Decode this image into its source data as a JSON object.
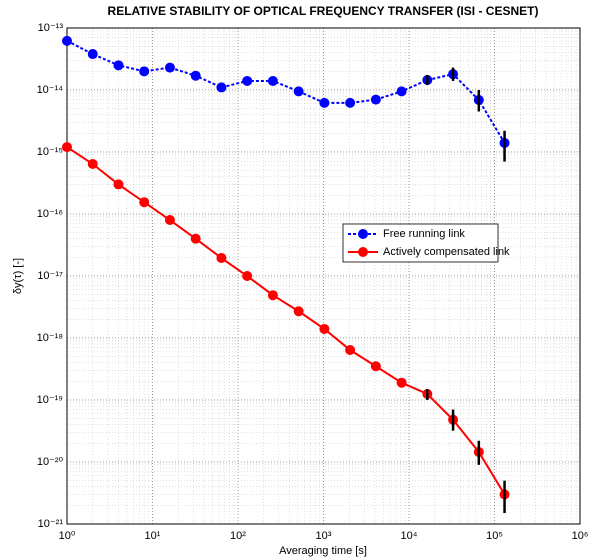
{
  "chart_data": {
    "type": "line",
    "title": "RELATIVE STABILITY OF OPTICAL FREQUENCY TRANSFER (ISI - CESNET)",
    "x_label": "Averaging time [s]",
    "y_label": "δy(τ) [-]",
    "log_x": true,
    "log_y": true,
    "grid": true,
    "minor_grid": true,
    "legend": "right",
    "x": [
      1,
      2,
      4,
      8,
      16,
      32,
      64,
      128,
      256,
      512,
      1024,
      2048,
      4096,
      8192,
      16384,
      32768,
      65536,
      131072
    ],
    "series": [
      {
        "name": "Free running link",
        "color": "#0000ff",
        "line_style": "dotted",
        "values": [
          6.2e-14,
          3.8e-14,
          2.5e-14,
          2e-14,
          2.3e-14,
          1.7e-14,
          1.1e-14,
          1.4e-14,
          1.4e-14,
          9.5e-15,
          6.2e-15,
          6.2e-15,
          7e-15,
          9.5e-15,
          1.45e-14,
          1.8e-14,
          6.9e-15,
          1.4e-15
        ],
        "err_low": [
          null,
          null,
          null,
          null,
          null,
          null,
          null,
          null,
          null,
          null,
          null,
          null,
          null,
          null,
          1.2e-14,
          1.4e-14,
          4.5e-15,
          7e-16
        ],
        "err_high": [
          null,
          null,
          null,
          null,
          null,
          null,
          null,
          null,
          null,
          null,
          null,
          null,
          null,
          null,
          1.75e-14,
          2.3e-14,
          1e-14,
          2.2e-15
        ]
      },
      {
        "name": "Actively compensated link",
        "color": "#ff0000",
        "line_style": "solid",
        "values": [
          1.2e-15,
          6.4e-16,
          3e-16,
          1.55e-16,
          8e-17,
          4e-17,
          1.95e-17,
          1e-17,
          4.9e-18,
          2.7e-18,
          1.4e-18,
          6.4e-19,
          3.5e-19,
          1.9e-19,
          1.25e-19,
          4.8e-20,
          1.45e-20,
          3e-21
        ],
        "err_low": [
          null,
          null,
          null,
          null,
          null,
          null,
          null,
          null,
          null,
          null,
          null,
          null,
          null,
          null,
          1e-19,
          3.2e-20,
          9e-21,
          1.5e-21
        ],
        "err_high": [
          null,
          null,
          null,
          null,
          null,
          null,
          null,
          null,
          null,
          null,
          null,
          null,
          null,
          null,
          1.5e-19,
          7e-20,
          2.2e-20,
          5e-21
        ]
      }
    ],
    "xlim": [
      1,
      1000000
    ],
    "ylim": [
      1e-21,
      1e-13
    ],
    "xticks": [
      {
        "value": 1,
        "label": "10⁰"
      },
      {
        "value": 10,
        "label": "10¹"
      },
      {
        "value": 100,
        "label": "10²"
      },
      {
        "value": 1000,
        "label": "10³"
      },
      {
        "value": 10000,
        "label": "10⁴"
      },
      {
        "value": 100000,
        "label": "10⁵"
      },
      {
        "value": 1000000,
        "label": "10⁶"
      }
    ],
    "yticks": [
      {
        "value": 1e-21,
        "label": "10⁻²¹"
      },
      {
        "value": 1e-20,
        "label": "10⁻²⁰"
      },
      {
        "value": 1e-19,
        "label": "10⁻¹⁹"
      },
      {
        "value": 1e-18,
        "label": "10⁻¹⁸"
      },
      {
        "value": 1e-17,
        "label": "10⁻¹⁷"
      },
      {
        "value": 1e-16,
        "label": "10⁻¹⁶"
      },
      {
        "value": 1e-15,
        "label": "10⁻¹⁵"
      },
      {
        "value": 1e-14,
        "label": "10⁻¹⁴"
      },
      {
        "value": 1e-13,
        "label": "10⁻¹³"
      }
    ]
  }
}
